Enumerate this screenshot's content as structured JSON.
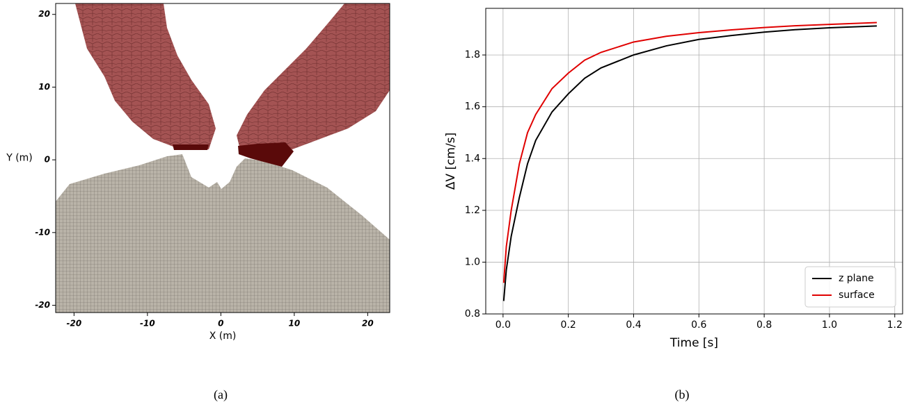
{
  "chart_data": [
    {
      "type": "image",
      "caption": "(a)",
      "xlabel": "X (m)",
      "ylabel": "Y (m)",
      "xlim": [
        -22.5,
        23
      ],
      "ylim": [
        -21,
        21.5
      ],
      "xticks": [
        -20,
        -10,
        0,
        10,
        20
      ],
      "yticks": [
        -20,
        -10,
        0,
        10,
        20
      ]
    },
    {
      "type": "line",
      "caption": "(b)",
      "xlabel": "Time [s]",
      "ylabel": "ΔV [cm/s]",
      "x": [
        0.002,
        0.01,
        0.025,
        0.05,
        0.075,
        0.1,
        0.15,
        0.2,
        0.25,
        0.3,
        0.4,
        0.5,
        0.6,
        0.7,
        0.8,
        0.9,
        1.0,
        1.145
      ],
      "series": [
        {
          "name": "z plane",
          "color": "#000000",
          "values": [
            0.85,
            0.97,
            1.1,
            1.25,
            1.38,
            1.47,
            1.58,
            1.65,
            1.71,
            1.75,
            1.8,
            1.835,
            1.86,
            1.875,
            1.888,
            1.898,
            1.905,
            1.912
          ]
        },
        {
          "name": "surface",
          "color": "#e00000",
          "values": [
            0.92,
            1.06,
            1.2,
            1.38,
            1.5,
            1.57,
            1.67,
            1.73,
            1.78,
            1.81,
            1.85,
            1.872,
            1.886,
            1.897,
            1.906,
            1.913,
            1.918,
            1.925
          ]
        }
      ],
      "xlim": [
        -0.053,
        1.224
      ],
      "ylim": [
        0.8,
        1.98
      ],
      "xticks": [
        {
          "value": 0,
          "label": "0.0"
        },
        0.2,
        0.4,
        0.6,
        0.8,
        {
          "value": 1,
          "label": "1.0"
        },
        1.2
      ],
      "yticks": [
        0.8,
        {
          "value": 1,
          "label": "1.0"
        },
        1.2,
        1.4,
        1.6,
        1.8
      ],
      "grid": true,
      "legend": "lower right"
    }
  ]
}
